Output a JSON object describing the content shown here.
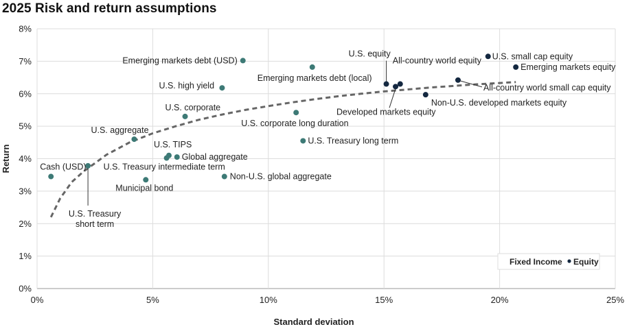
{
  "chart_data": {
    "type": "scatter",
    "title": "2025 Risk and return assumptions",
    "xlabel": "Standard deviation",
    "ylabel": "Return",
    "xlim": [
      0,
      25
    ],
    "ylim": [
      0,
      8
    ],
    "xticks": [
      0,
      5,
      10,
      15,
      20,
      25
    ],
    "yticks": [
      0,
      1,
      2,
      3,
      4,
      5,
      6,
      7,
      8
    ],
    "xtick_labels": [
      "0%",
      "5%",
      "10%",
      "15%",
      "20%",
      "25%"
    ],
    "ytick_labels": [
      "0%",
      "1%",
      "2%",
      "3%",
      "4%",
      "5%",
      "6%",
      "7%",
      "8%"
    ],
    "grid": true,
    "colors": {
      "fixed_income": "#3d7a76",
      "equity": "#142840",
      "trend": "#666666"
    },
    "legend": {
      "position": "bottom-right",
      "items": [
        {
          "label": "Fixed Income",
          "category": "fixed_income"
        },
        {
          "label": "Equity",
          "category": "equity"
        }
      ]
    },
    "series": [
      {
        "name": "Fixed Income",
        "category": "fixed_income",
        "points": [
          {
            "label": "Cash (USD)",
            "x": 0.6,
            "y": 3.45
          },
          {
            "label": "U.S. Treasury short term",
            "x": 2.2,
            "y": 3.78
          },
          {
            "label": "U.S. aggregate",
            "x": 4.2,
            "y": 4.6
          },
          {
            "label": "Municipal bond",
            "x": 4.7,
            "y": 3.35
          },
          {
            "label": "U.S. TIPS",
            "x": 5.7,
            "y": 4.1
          },
          {
            "label": "U.S. Treasury intermediate term",
            "x": 5.6,
            "y": 4.02
          },
          {
            "label": "Global aggregate",
            "x": 6.05,
            "y": 4.05
          },
          {
            "label": "U.S. corporate",
            "x": 6.4,
            "y": 5.3
          },
          {
            "label": "U.S. high yield",
            "x": 8.0,
            "y": 6.18
          },
          {
            "label": "Non-U.S. global aggregate",
            "x": 8.1,
            "y": 3.45
          },
          {
            "label": "Emerging markets debt (USD)",
            "x": 8.9,
            "y": 7.02
          },
          {
            "label": "U.S. corporate long duration",
            "x": 11.2,
            "y": 5.42
          },
          {
            "label": "U.S. Treasury long term",
            "x": 11.5,
            "y": 4.55
          },
          {
            "label": "Emerging markets debt (local)",
            "x": 11.9,
            "y": 6.82
          }
        ]
      },
      {
        "name": "Equity",
        "category": "equity",
        "points": [
          {
            "label": "U.S. equity",
            "x": 15.1,
            "y": 6.3
          },
          {
            "label": "Developed markets equity",
            "x": 15.5,
            "y": 6.22
          },
          {
            "label": "All-country world equity",
            "x": 15.7,
            "y": 6.3
          },
          {
            "label": "Non-U.S. developed markets equity",
            "x": 16.8,
            "y": 5.97
          },
          {
            "label": "All-country world small cap equity",
            "x": 18.2,
            "y": 6.42
          },
          {
            "label": "U.S. small cap equity",
            "x": 19.5,
            "y": 7.15
          },
          {
            "label": "Emerging markets equity",
            "x": 20.7,
            "y": 6.82
          }
        ]
      }
    ],
    "trendline": {
      "style": "dashed",
      "type": "logarithmic",
      "points": [
        [
          0.6,
          2.2
        ],
        [
          1.0,
          2.78
        ],
        [
          1.5,
          3.28
        ],
        [
          2.0,
          3.6
        ],
        [
          3.0,
          4.12
        ],
        [
          4.0,
          4.5
        ],
        [
          5.0,
          4.78
        ],
        [
          6.0,
          5.0
        ],
        [
          7.0,
          5.2
        ],
        [
          8.0,
          5.36
        ],
        [
          9.0,
          5.5
        ],
        [
          10.0,
          5.62
        ],
        [
          11.0,
          5.73
        ],
        [
          12.0,
          5.83
        ],
        [
          13.0,
          5.92
        ],
        [
          14.0,
          6.0
        ],
        [
          15.0,
          6.07
        ],
        [
          16.0,
          6.13
        ],
        [
          17.0,
          6.19
        ],
        [
          18.0,
          6.24
        ],
        [
          19.0,
          6.29
        ],
        [
          20.0,
          6.33
        ],
        [
          20.7,
          6.36
        ]
      ]
    }
  }
}
